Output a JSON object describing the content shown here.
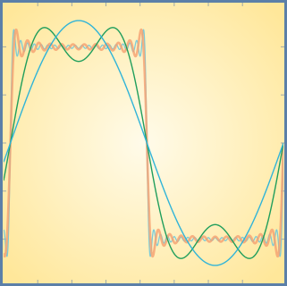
{
  "chart_data": {
    "type": "line",
    "title": "",
    "xlabel": "",
    "ylabel": "",
    "xlim": [
      0,
      2.05
    ],
    "ylim": [
      -1.45,
      1.45
    ],
    "grid": false,
    "legend": "none",
    "background": {
      "outer": "#ffe79a",
      "inner": "#fffbea",
      "frame": "#5b7fa8"
    },
    "x_ticks": {
      "top": [
        0.25,
        0.5,
        0.75,
        1,
        1.25,
        1.5,
        1.75
      ],
      "bottom": [
        0.25,
        0.5,
        0.75,
        1,
        1.25,
        1.5,
        1.75
      ]
    },
    "y_ticks": [
      -1,
      -0.5,
      0,
      0.5,
      1
    ],
    "target_wave": {
      "shape": "square",
      "period": 2,
      "amplitude": 1,
      "start_x": 0.05
    },
    "series": [
      {
        "harmonic_terms": 1,
        "color": "#30b4d8",
        "stroke_width": 1.4,
        "opacity": 1
      },
      {
        "harmonic_terms": 2,
        "color": "#1f9e5c",
        "stroke_width": 1.4,
        "opacity": 1
      },
      {
        "harmonic_terms": 12,
        "color": "#f5a070",
        "stroke_width": 2.6,
        "opacity": 0.8
      },
      {
        "harmonic_terms": 20,
        "color": "#6ec8dc",
        "stroke_width": 1.3,
        "opacity": 0.9
      }
    ],
    "sample_points": 1200
  }
}
